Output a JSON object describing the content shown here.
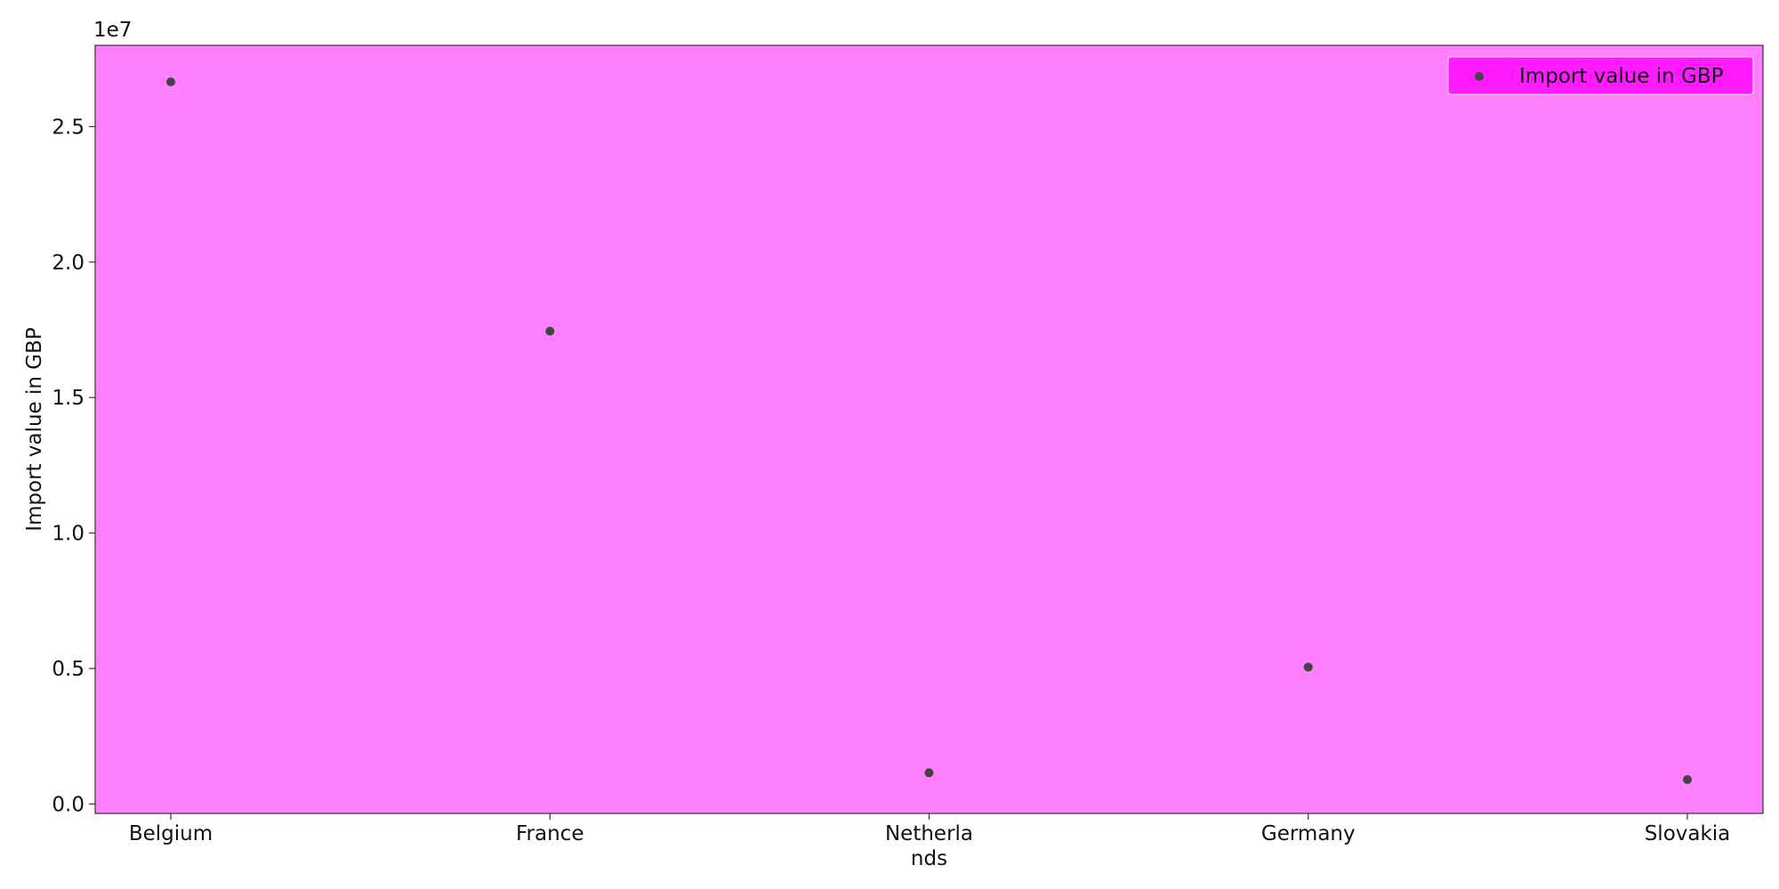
{
  "chart_data": {
    "type": "scatter",
    "categories": [
      "Belgium",
      "France",
      "Netherla\nnds",
      "Germany",
      "Slovakia"
    ],
    "series": [
      {
        "name": "Import value in GBP",
        "values": [
          26650000,
          17450000,
          1150000,
          5050000,
          900000
        ]
      }
    ],
    "title": "",
    "xlabel": "",
    "ylabel": "Import value in GBP",
    "y_scale_label": "1e7",
    "y_scale_factor": 10000000,
    "ylim": [
      -350000,
      28000000
    ],
    "yticks": [
      0,
      5000000,
      10000000,
      15000000,
      20000000,
      25000000
    ],
    "ytick_labels": [
      "0.0",
      "0.5",
      "1.0",
      "1.5",
      "2.0",
      "2.5"
    ],
    "grid": false,
    "legend_position": "top-right",
    "colors": {
      "plot_background": "#ff80ff",
      "legend_background": "#ff1aff",
      "marker": "#444444",
      "axis": "#333333"
    }
  }
}
